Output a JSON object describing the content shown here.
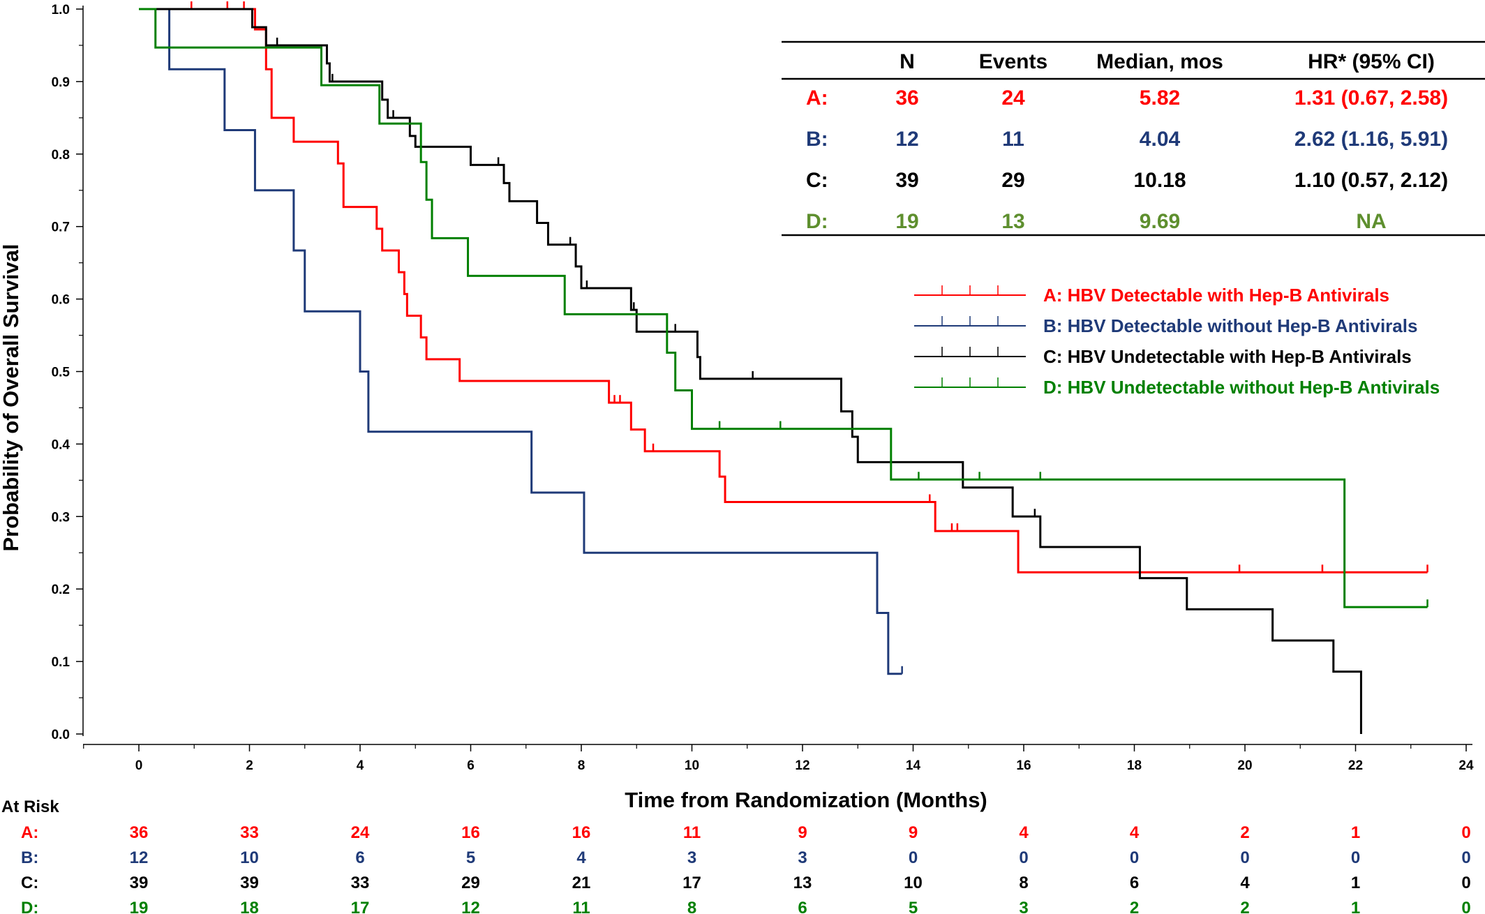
{
  "chart_data": {
    "type": "line",
    "subtype": "kaplan-meier step",
    "xlabel": "Time from Randomization (Months)",
    "ylabel": "Probability of Overall Survival",
    "xlim": [
      0,
      24
    ],
    "ylim": [
      0,
      1
    ],
    "x_ticks": [
      "0",
      "2",
      "4",
      "6",
      "8",
      "10",
      "12",
      "14",
      "16",
      "18",
      "20",
      "22",
      "24"
    ],
    "y_ticks": [
      "0.0",
      "0.1",
      "0.2",
      "0.3",
      "0.4",
      "0.5",
      "0.6",
      "0.7",
      "0.8",
      "0.9",
      "1.0"
    ],
    "series": [
      {
        "name": "A: HBV Detectable with Hep-B Antivirals",
        "color": "#ff0000",
        "steps": [
          [
            0,
            1.0
          ],
          [
            2.1,
            0.972
          ],
          [
            2.3,
            0.917
          ],
          [
            2.4,
            0.85
          ],
          [
            2.8,
            0.817
          ],
          [
            3.6,
            0.787
          ],
          [
            3.7,
            0.727
          ],
          [
            4.3,
            0.697
          ],
          [
            4.4,
            0.667
          ],
          [
            4.7,
            0.637
          ],
          [
            4.8,
            0.607
          ],
          [
            4.85,
            0.577
          ],
          [
            5.1,
            0.547
          ],
          [
            5.2,
            0.517
          ],
          [
            5.8,
            0.487
          ],
          [
            8.5,
            0.457
          ],
          [
            8.9,
            0.42
          ],
          [
            9.15,
            0.39
          ],
          [
            10.5,
            0.355
          ],
          [
            10.6,
            0.32
          ],
          [
            14.4,
            0.28
          ],
          [
            15.9,
            0.223
          ],
          [
            23.3,
            0.223
          ]
        ],
        "censor_times": [
          0.95,
          1.6,
          1.9,
          8.6,
          8.7,
          9.3,
          14.3,
          14.7,
          14.8,
          19.9,
          21.4,
          23.3
        ]
      },
      {
        "name": "B: HBV Detectable without Hep-B Antivirals",
        "color": "#1f3a78",
        "steps": [
          [
            0,
            1.0
          ],
          [
            0.55,
            0.917
          ],
          [
            1.55,
            0.833
          ],
          [
            2.1,
            0.75
          ],
          [
            2.8,
            0.667
          ],
          [
            3.0,
            0.583
          ],
          [
            4.0,
            0.5
          ],
          [
            4.15,
            0.417
          ],
          [
            7.1,
            0.333
          ],
          [
            8.05,
            0.25
          ],
          [
            13.35,
            0.167
          ],
          [
            13.55,
            0.083
          ],
          [
            13.8,
            0.083
          ]
        ],
        "censor_times": [
          13.8
        ]
      },
      {
        "name": "C: HBV Undetectable with Hep-B Antivirals",
        "color": "#000000",
        "steps": [
          [
            0,
            1.0
          ],
          [
            2.05,
            0.975
          ],
          [
            2.3,
            0.95
          ],
          [
            3.4,
            0.925
          ],
          [
            3.45,
            0.9
          ],
          [
            4.4,
            0.875
          ],
          [
            4.5,
            0.85
          ],
          [
            4.9,
            0.825
          ],
          [
            5.0,
            0.81
          ],
          [
            6.0,
            0.785
          ],
          [
            6.6,
            0.76
          ],
          [
            6.7,
            0.735
          ],
          [
            7.2,
            0.705
          ],
          [
            7.4,
            0.675
          ],
          [
            7.9,
            0.645
          ],
          [
            8.0,
            0.615
          ],
          [
            8.9,
            0.585
          ],
          [
            9.0,
            0.555
          ],
          [
            10.1,
            0.52
          ],
          [
            10.15,
            0.49
          ],
          [
            12.7,
            0.445
          ],
          [
            12.9,
            0.41
          ],
          [
            13.0,
            0.375
          ],
          [
            14.9,
            0.34
          ],
          [
            15.8,
            0.3
          ],
          [
            16.3,
            0.258
          ],
          [
            18.1,
            0.215
          ],
          [
            18.95,
            0.172
          ],
          [
            20.5,
            0.129
          ],
          [
            21.6,
            0.086
          ],
          [
            22.1,
            0.0
          ]
        ],
        "censor_times": [
          2.5,
          3.5,
          4.6,
          6.5,
          7.8,
          8.1,
          8.95,
          9.7,
          11.1,
          16.2
        ]
      },
      {
        "name": "D: HBV Undetectable without Hep-B Antivirals",
        "color": "#008000",
        "steps": [
          [
            0,
            1.0
          ],
          [
            0.3,
            0.947
          ],
          [
            3.3,
            0.895
          ],
          [
            4.35,
            0.842
          ],
          [
            5.1,
            0.789
          ],
          [
            5.2,
            0.737
          ],
          [
            5.3,
            0.684
          ],
          [
            5.95,
            0.632
          ],
          [
            7.7,
            0.579
          ],
          [
            9.55,
            0.526
          ],
          [
            9.7,
            0.474
          ],
          [
            10.0,
            0.421
          ],
          [
            13.6,
            0.351
          ],
          [
            21.8,
            0.175
          ],
          [
            23.3,
            0.175
          ]
        ],
        "censor_times": [
          10.5,
          11.6,
          14.1,
          15.2,
          16.3,
          23.3
        ]
      }
    ],
    "summary_table": {
      "columns": [
        "",
        "N",
        "Events",
        "Median, mos",
        "HR* (95% CI)"
      ],
      "rows": [
        {
          "label": "A:",
          "n": "36",
          "events": "24",
          "median": "5.82",
          "hr": "1.31 (0.67, 2.58)",
          "color": "#ff0000"
        },
        {
          "label": "B:",
          "n": "12",
          "events": "11",
          "median": "4.04",
          "hr": "2.62 (1.16, 5.91)",
          "color": "#1f3a78"
        },
        {
          "label": "C:",
          "n": "39",
          "events": "29",
          "median": "10.18",
          "hr": "1.10 (0.57, 2.12)",
          "color": "#000000"
        },
        {
          "label": "D:",
          "n": "19",
          "events": "13",
          "median": "9.69",
          "hr": "NA",
          "color": "#5e8f2e"
        }
      ]
    },
    "at_risk": {
      "title": "At Risk",
      "rows": [
        {
          "label": "A:",
          "color": "#ff0000",
          "values": [
            "36",
            "33",
            "24",
            "16",
            "16",
            "11",
            "9",
            "9",
            "4",
            "4",
            "2",
            "1",
            "0"
          ]
        },
        {
          "label": "B:",
          "color": "#1f3a78",
          "values": [
            "12",
            "10",
            "6",
            "5",
            "4",
            "3",
            "3",
            "0",
            "0",
            "0",
            "0",
            "0",
            "0"
          ]
        },
        {
          "label": "C:",
          "color": "#000000",
          "values": [
            "39",
            "39",
            "33",
            "29",
            "21",
            "17",
            "13",
            "10",
            "8",
            "6",
            "4",
            "1",
            "0"
          ]
        },
        {
          "label": "D:",
          "color": "#008000",
          "values": [
            "19",
            "18",
            "17",
            "12",
            "11",
            "8",
            "6",
            "5",
            "3",
            "2",
            "2",
            "1",
            "0"
          ]
        }
      ]
    },
    "legend_position": "right"
  }
}
